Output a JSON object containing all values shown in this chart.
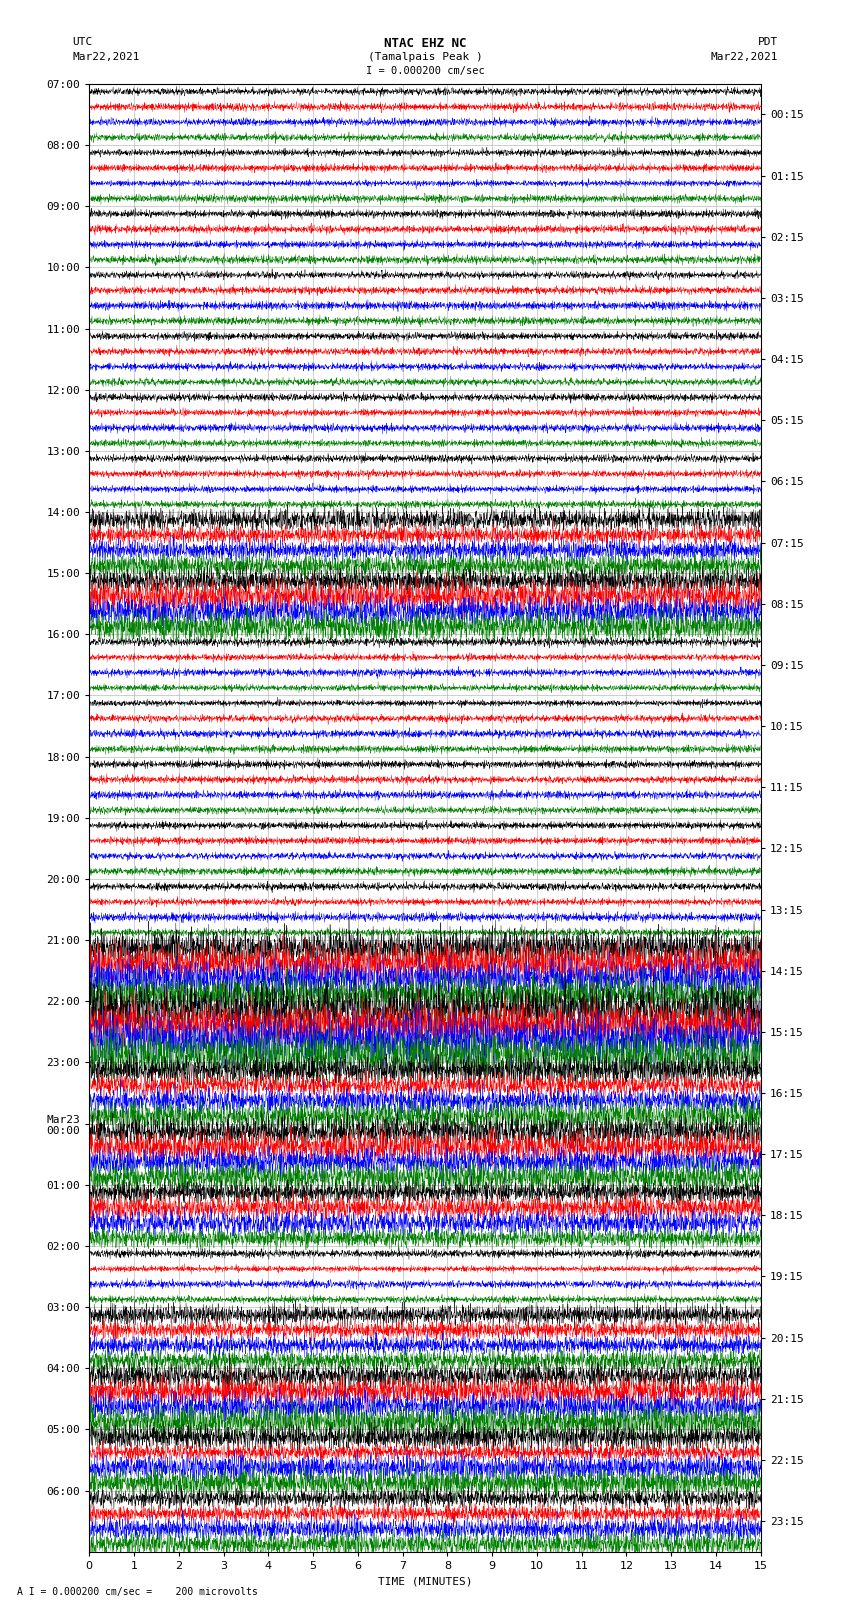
{
  "title_line1": "NTAC EHZ NC",
  "title_line2": "(Tamalpais Peak )",
  "scale_label": "I = 0.000200 cm/sec",
  "bottom_label": "A I = 0.000200 cm/sec =    200 microvolts",
  "utc_label": "UTC",
  "utc_date": "Mar22,2021",
  "pdt_label": "PDT",
  "pdt_date": "Mar22,2021",
  "xlabel": "TIME (MINUTES)",
  "left_times": [
    "07:00",
    "08:00",
    "09:00",
    "10:00",
    "11:00",
    "12:00",
    "13:00",
    "14:00",
    "15:00",
    "16:00",
    "17:00",
    "18:00",
    "19:00",
    "20:00",
    "21:00",
    "22:00",
    "23:00",
    "Mar23\n00:00",
    "01:00",
    "02:00",
    "03:00",
    "04:00",
    "05:00",
    "06:00"
  ],
  "right_times": [
    "00:15",
    "01:15",
    "02:15",
    "03:15",
    "04:15",
    "05:15",
    "06:15",
    "07:15",
    "08:15",
    "09:15",
    "10:15",
    "11:15",
    "12:15",
    "13:15",
    "14:15",
    "15:15",
    "16:15",
    "17:15",
    "18:15",
    "19:15",
    "20:15",
    "21:15",
    "22:15",
    "23:15"
  ],
  "n_rows": 24,
  "n_traces_per_row": 4,
  "colors": [
    "black",
    "red",
    "blue",
    "green"
  ],
  "xlim": [
    0,
    15
  ],
  "xticks": [
    0,
    1,
    2,
    3,
    4,
    5,
    6,
    7,
    8,
    9,
    10,
    11,
    12,
    13,
    14,
    15
  ],
  "background_color": "white",
  "grid_color": "#aaaaaa",
  "title_fontsize": 9,
  "label_fontsize": 8,
  "tick_fontsize": 8,
  "large_amp_rows": [
    7,
    8,
    14,
    15,
    16,
    17,
    18,
    20,
    21,
    22,
    23
  ],
  "large_amp_scales": [
    3.0,
    4.0,
    5.0,
    6.0,
    3.5,
    4.0,
    3.0,
    2.5,
    4.0,
    3.5,
    3.0
  ]
}
